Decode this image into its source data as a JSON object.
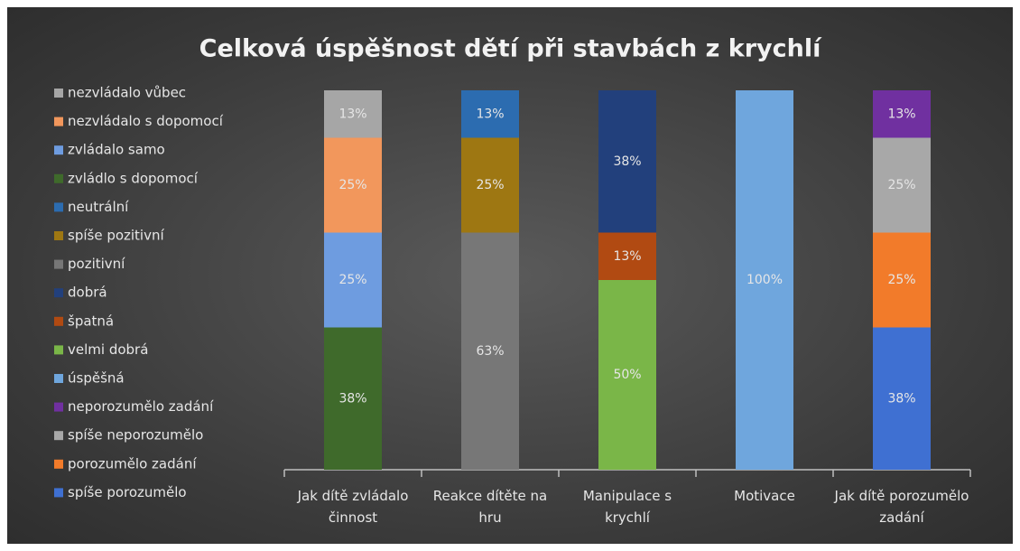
{
  "chart_data": {
    "type": "stacked_bar_100",
    "title": "Celková úspěšnost dětí při stavbách z krychlí",
    "categories": [
      "Jak dítě zvládalo činnost",
      "Reakce dítěte na hru",
      "Manipulace s krychlí",
      "Motivace",
      "Jak dítě porozumělo zadání"
    ],
    "series": [
      {
        "name": "nezvládalo vůbec",
        "color": "#a6a6a6",
        "values": [
          12.5,
          null,
          null,
          null,
          null
        ],
        "value_labels": [
          "13%",
          null,
          null,
          null,
          null
        ]
      },
      {
        "name": "nezvládalo s dopomocí",
        "color": "#f2975c",
        "values": [
          25,
          null,
          null,
          null,
          null
        ],
        "value_labels": [
          "25%",
          null,
          null,
          null,
          null
        ]
      },
      {
        "name": "zvládalo samo",
        "color": "#6e9ce0",
        "values": [
          25,
          null,
          null,
          null,
          null
        ],
        "value_labels": [
          "25%",
          null,
          null,
          null,
          null
        ]
      },
      {
        "name": "zvládlo s dopomocí",
        "color": "#3f6a2b",
        "values": [
          37.5,
          null,
          null,
          null,
          null
        ],
        "value_labels": [
          "38%",
          null,
          null,
          null,
          null
        ]
      },
      {
        "name": "neutrální",
        "color": "#2c6cb0",
        "values": [
          null,
          12.5,
          null,
          null,
          null
        ],
        "value_labels": [
          null,
          "13%",
          null,
          null,
          null
        ]
      },
      {
        "name": "spíše pozitivní",
        "color": "#9e7712",
        "values": [
          null,
          25,
          null,
          null,
          null
        ],
        "value_labels": [
          null,
          "25%",
          null,
          null,
          null
        ]
      },
      {
        "name": "pozitivní",
        "color": "#777777",
        "values": [
          null,
          62.5,
          null,
          null,
          null
        ],
        "value_labels": [
          null,
          "63%",
          null,
          null,
          null
        ]
      },
      {
        "name": "dobrá",
        "color": "#22407c",
        "values": [
          null,
          null,
          37.5,
          null,
          null
        ],
        "value_labels": [
          null,
          null,
          "38%",
          null,
          null
        ]
      },
      {
        "name": "špatná",
        "color": "#b14a12",
        "values": [
          null,
          null,
          12.5,
          null,
          null
        ],
        "value_labels": [
          null,
          null,
          "13%",
          null,
          null
        ]
      },
      {
        "name": "velmi dobrá",
        "color": "#7ab648",
        "values": [
          null,
          null,
          50,
          null,
          null
        ],
        "value_labels": [
          null,
          null,
          "50%",
          null,
          null
        ]
      },
      {
        "name": "úspěšná",
        "color": "#6fa6dd",
        "values": [
          null,
          null,
          null,
          100,
          null
        ],
        "value_labels": [
          null,
          null,
          null,
          "100%",
          null
        ]
      },
      {
        "name": "neporozumělo zadání",
        "color": "#7030a0",
        "values": [
          null,
          null,
          null,
          null,
          12.5
        ],
        "value_labels": [
          null,
          null,
          null,
          null,
          "13%"
        ]
      },
      {
        "name": "spíše neporozumělo",
        "color": "#a8a8a8",
        "values": [
          null,
          null,
          null,
          null,
          25
        ],
        "value_labels": [
          null,
          null,
          null,
          null,
          "25%"
        ]
      },
      {
        "name": "porozumělo zadání",
        "color": "#f27b2a",
        "values": [
          null,
          null,
          null,
          null,
          25
        ],
        "value_labels": [
          null,
          null,
          null,
          null,
          "25%"
        ]
      },
      {
        "name": "spíše porozumělo",
        "color": "#3f70d2",
        "values": [
          null,
          null,
          null,
          null,
          37.5
        ],
        "value_labels": [
          null,
          null,
          null,
          null,
          "38%"
        ]
      }
    ]
  }
}
